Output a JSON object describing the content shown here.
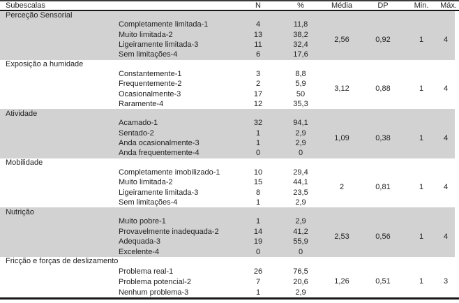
{
  "colors": {
    "shaded_row": "#d2d2d2",
    "border": "#171717",
    "text": "#222222"
  },
  "table": {
    "header": {
      "subescalas": "Subescalas",
      "n": "N",
      "pct": "%",
      "media": "Média",
      "dp": "DP",
      "min": "Min.",
      "max": "Máx."
    },
    "sections": [
      {
        "title": "Perceção Sensorial",
        "shaded": true,
        "items": [
          {
            "label": "Completamente limitada-1",
            "n": "4",
            "pct": "11,8"
          },
          {
            "label": "Muito limitada-2",
            "n": "13",
            "pct": "38,2"
          },
          {
            "label": "Ligeiramente limitada-3",
            "n": "11",
            "pct": "32,4"
          },
          {
            "label": "Sem limitações-4",
            "n": "6",
            "pct": "17,6"
          }
        ],
        "stats": {
          "media": "2,56",
          "dp": "0,92",
          "min": "1",
          "max": "4"
        }
      },
      {
        "title": "Exposição a humidade",
        "shaded": false,
        "items": [
          {
            "label": "Constantemente-1",
            "n": "3",
            "pct": "8,8"
          },
          {
            "label": "Frequentemente-2",
            "n": "2",
            "pct": "5,9"
          },
          {
            "label": "Ocasionalmente-3",
            "n": "17",
            "pct": "50"
          },
          {
            "label": "Raramente-4",
            "n": "12",
            "pct": "35,3"
          }
        ],
        "stats": {
          "media": "3,12",
          "dp": "0,88",
          "min": "1",
          "max": "4"
        }
      },
      {
        "title": "Atividade",
        "shaded": true,
        "items": [
          {
            "label": "Acamado-1",
            "n": "32",
            "pct": "94,1"
          },
          {
            "label": "Sentado-2",
            "n": "1",
            "pct": "2,9"
          },
          {
            "label": "Anda ocasionalmente-3",
            "n": "1",
            "pct": "2,9"
          },
          {
            "label": "Anda frequentemente-4",
            "n": "0",
            "pct": "0"
          }
        ],
        "stats": {
          "media": "1,09",
          "dp": "0,38",
          "min": "1",
          "max": "4"
        }
      },
      {
        "title": "Mobilidade",
        "shaded": false,
        "items": [
          {
            "label": "Completamente imobilizado-1",
            "n": "10",
            "pct": "29,4"
          },
          {
            "label": "Muito limitada-2",
            "n": "15",
            "pct": "44,1"
          },
          {
            "label": "Ligeiramente limitada-3",
            "n": "8",
            "pct": "23,5"
          },
          {
            "label": "Sem limitações-4",
            "n": "1",
            "pct": "2,9"
          }
        ],
        "stats": {
          "media": "2",
          "dp": "0,81",
          "min": "1",
          "max": "4"
        }
      },
      {
        "title": "Nutrição",
        "shaded": true,
        "items": [
          {
            "label": "Muito pobre-1",
            "n": "1",
            "pct": "2,9"
          },
          {
            "label": "Provavelmente inadequada-2",
            "n": "14",
            "pct": "41,2"
          },
          {
            "label": "Adequada-3",
            "n": "19",
            "pct": "55,9"
          },
          {
            "label": "Excelente-4",
            "n": "0",
            "pct": "0"
          }
        ],
        "stats": {
          "media": "2,53",
          "dp": "0,56",
          "min": "1",
          "max": "4"
        }
      },
      {
        "title": "Fricção e forças de deslizamento",
        "shaded": false,
        "items": [
          {
            "label": "Problema real-1",
            "n": "26",
            "pct": "76,5"
          },
          {
            "label": "Problema potencial-2",
            "n": "7",
            "pct": "20,6"
          },
          {
            "label": "Nenhum problema-3",
            "n": "1",
            "pct": "2,9"
          }
        ],
        "stats": {
          "media": "1,26",
          "dp": "0,51",
          "min": "1",
          "max": "3"
        }
      }
    ]
  }
}
